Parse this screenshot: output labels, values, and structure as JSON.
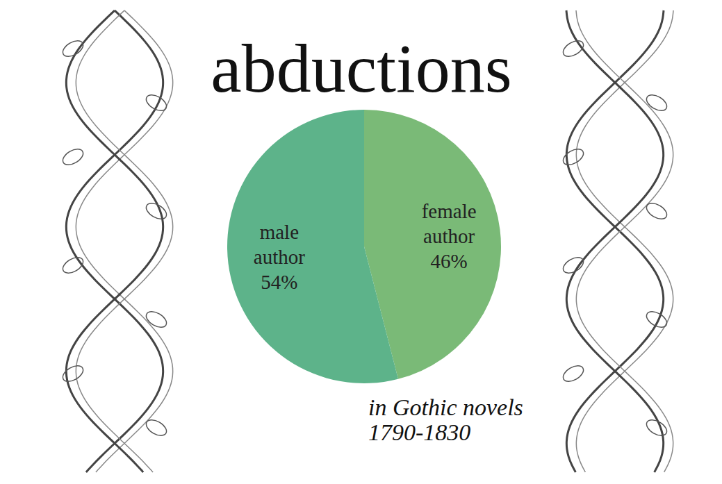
{
  "chart_data": {
    "type": "pie",
    "title": "abductions",
    "categories": [
      "female author",
      "male author"
    ],
    "values": [
      46,
      54
    ],
    "value_labels": [
      "46%",
      "54%"
    ],
    "colors": [
      "#7aba77",
      "#5db38a"
    ],
    "data_labels": true,
    "annotations": [
      "in Gothic novels",
      "1790-1830"
    ]
  }
}
